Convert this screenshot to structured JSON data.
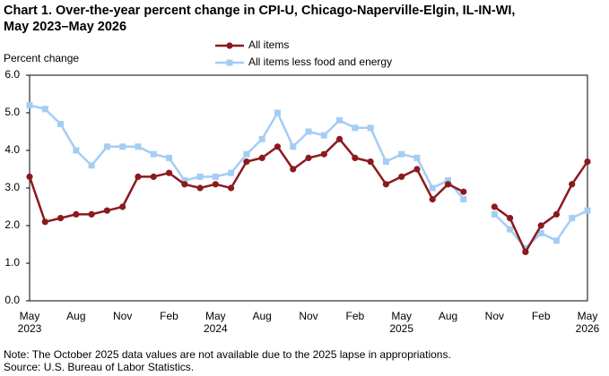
{
  "chart_data": {
    "type": "line",
    "title_lines": [
      "Chart 1. Over-the-year percent change in CPI-U, Chicago-Naperville-Elgin,  IL-IN-WI,",
      "May 2023–May 2026"
    ],
    "y_axis_label": "Percent change",
    "categories": [
      "May",
      null,
      null,
      "Aug",
      null,
      null,
      "Nov",
      null,
      null,
      "Feb",
      null,
      null,
      "May",
      null,
      null,
      "Aug",
      null,
      null,
      "Nov",
      null,
      null,
      "Feb",
      null,
      null,
      "May",
      null,
      null,
      "Aug",
      null,
      null,
      "Nov",
      null,
      null,
      "Feb",
      null,
      null,
      "May"
    ],
    "category_years": [
      "2023",
      null,
      null,
      null,
      null,
      null,
      null,
      null,
      null,
      null,
      null,
      null,
      "2024",
      null,
      null,
      null,
      null,
      null,
      null,
      null,
      null,
      null,
      null,
      null,
      "2025",
      null,
      null,
      null,
      null,
      null,
      null,
      null,
      null,
      null,
      null,
      null,
      "2026"
    ],
    "series": [
      {
        "name": "All items",
        "color": "#8b1a1f",
        "marker": "circle",
        "values": [
          3.3,
          2.1,
          2.2,
          2.3,
          2.3,
          2.4,
          2.5,
          3.3,
          3.3,
          3.4,
          3.1,
          3.0,
          3.1,
          3.0,
          3.7,
          3.8,
          4.1,
          3.5,
          3.8,
          3.9,
          4.3,
          3.8,
          3.7,
          3.1,
          3.3,
          3.5,
          2.7,
          3.1,
          2.9,
          null,
          2.5,
          2.2,
          1.3,
          2.0,
          2.3,
          3.1,
          3.7
        ]
      },
      {
        "name": "All items less food and energy",
        "color": "#a3cdf5",
        "marker": "square",
        "values": [
          5.2,
          5.1,
          4.7,
          4.0,
          3.6,
          4.1,
          4.1,
          4.1,
          3.9,
          3.8,
          3.2,
          3.3,
          3.3,
          3.4,
          3.9,
          4.3,
          5.0,
          4.1,
          4.5,
          4.4,
          4.8,
          4.6,
          4.6,
          3.7,
          3.9,
          3.8,
          3.0,
          3.2,
          2.7,
          null,
          2.3,
          1.9,
          1.4,
          1.8,
          1.6,
          2.2,
          2.4
        ]
      }
    ],
    "ylim": [
      0,
      6
    ],
    "yticks": [
      {
        "value": 0,
        "label": "0.0"
      },
      {
        "value": 1,
        "label": "1.0"
      },
      {
        "value": 2,
        "label": "2.0"
      },
      {
        "value": 3,
        "label": "3.0"
      },
      {
        "value": 4,
        "label": "4.0"
      },
      {
        "value": 5,
        "label": "5.0"
      },
      {
        "value": 6,
        "label": "6.0"
      }
    ],
    "grid": false,
    "note": "Note: The October 2025 data values  are not available  due to the 2025  lapse in appropriations.",
    "source": "Source:  U.S. Bureau  of Labor Statistics."
  }
}
